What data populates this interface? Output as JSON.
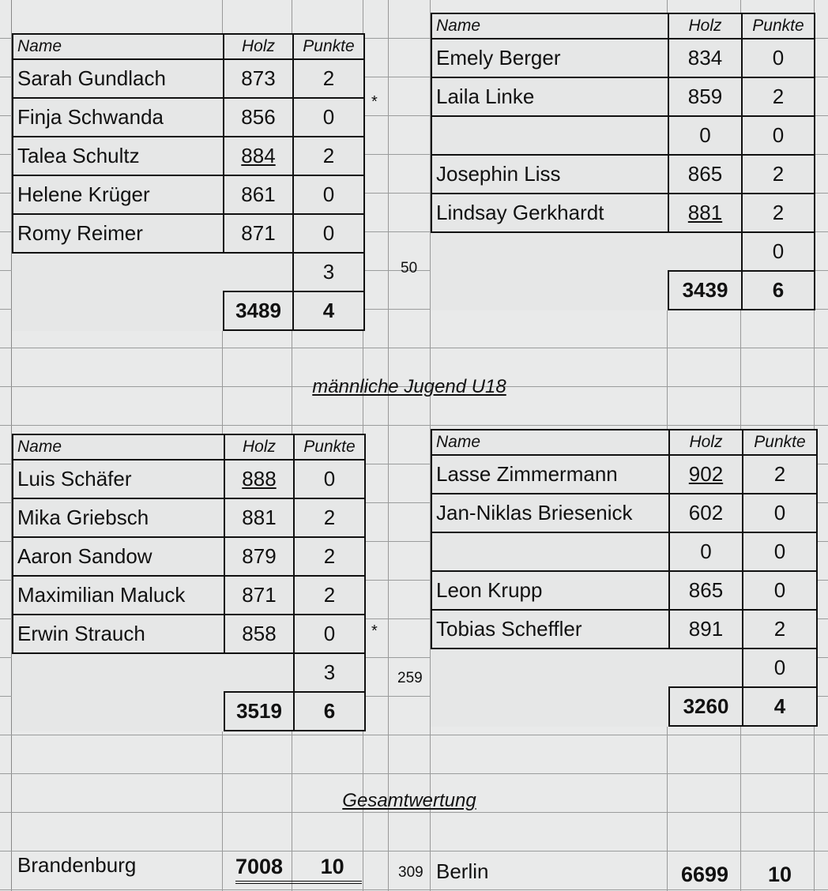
{
  "headers": {
    "name": "Name",
    "holz": "Holz",
    "punkte": "Punkte"
  },
  "sections": {
    "u18": "männliche Jugend U18",
    "gesamt": "Gesamtwertung"
  },
  "tables": [
    {
      "id": "top-left",
      "rows": [
        {
          "name": "Sarah Gundlach",
          "holz": "873",
          "punkte": "2"
        },
        {
          "name": "Finja Schwanda",
          "holz": "856",
          "punkte": "0"
        },
        {
          "name": "Talea Schultz",
          "holz": "884",
          "punkte": "2",
          "best": true
        },
        {
          "name": "Helene Krüger",
          "holz": "861",
          "punkte": "0"
        },
        {
          "name": "Romy Reimer",
          "holz": "871",
          "punkte": "0"
        }
      ],
      "extra_punkte": "3",
      "total_holz": "3489",
      "total_punkte": "4"
    },
    {
      "id": "top-right",
      "rows": [
        {
          "name": "Emely Berger",
          "holz": "834",
          "punkte": "0"
        },
        {
          "name": "Laila Linke",
          "holz": "859",
          "punkte": "2"
        },
        {
          "name": "",
          "holz": "0",
          "punkte": "0"
        },
        {
          "name": "Josephin Liss",
          "holz": "865",
          "punkte": "2"
        },
        {
          "name": "Lindsay Gerkhardt",
          "holz": "881",
          "punkte": "2",
          "best": true
        }
      ],
      "extra_punkte": "0",
      "total_holz": "3439",
      "total_punkte": "6"
    },
    {
      "id": "u18-left",
      "rows": [
        {
          "name": "Luis Schäfer",
          "holz": "888",
          "punkte": "0",
          "best": true
        },
        {
          "name": "Mika Griebsch",
          "holz": "881",
          "punkte": "2"
        },
        {
          "name": "Aaron Sandow",
          "holz": "879",
          "punkte": "2"
        },
        {
          "name": "Maximilian Maluck",
          "holz": "871",
          "punkte": "2"
        },
        {
          "name": "Erwin Strauch",
          "holz": "858",
          "punkte": "0"
        }
      ],
      "extra_punkte": "3",
      "total_holz": "3519",
      "total_punkte": "6"
    },
    {
      "id": "u18-right",
      "rows": [
        {
          "name": "Lasse Zimmermann",
          "holz": "902",
          "punkte": "2",
          "best": true
        },
        {
          "name": "Jan-Niklas Briesenick",
          "holz": "602",
          "punkte": "0"
        },
        {
          "name": "",
          "holz": "0",
          "punkte": "0"
        },
        {
          "name": "Leon Krupp",
          "holz": "865",
          "punkte": "0"
        },
        {
          "name": "Tobias Scheffler",
          "holz": "891",
          "punkte": "2"
        }
      ],
      "extra_punkte": "0",
      "total_holz": "3260",
      "total_punkte": "4"
    }
  ],
  "marks": {
    "star1": "*",
    "diff1": "50",
    "star2": "*",
    "diff2": "259"
  },
  "gesamt": {
    "left_team": "Brandenburg",
    "left_holz": "7008",
    "left_punkte": "10",
    "diff": "309",
    "right_team": "Berlin",
    "right_holz": "6699",
    "right_punkte": "10"
  }
}
